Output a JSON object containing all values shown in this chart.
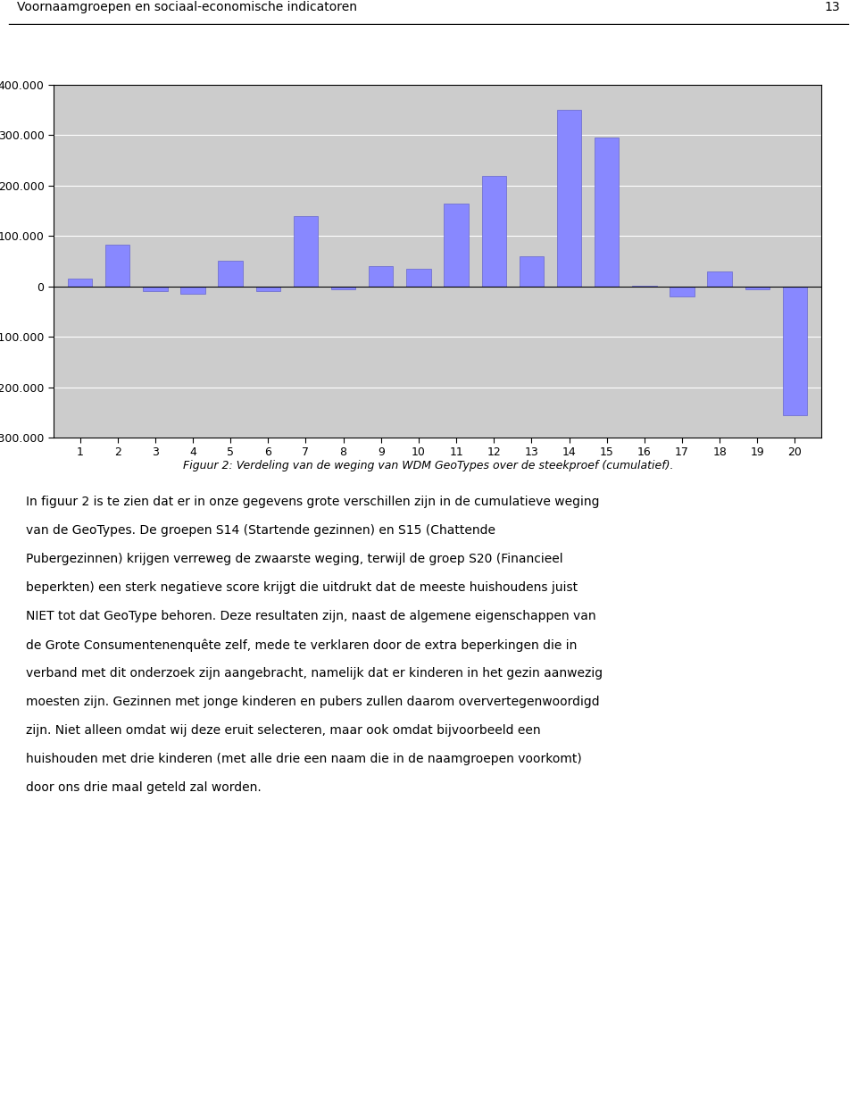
{
  "values": [
    15000,
    82000,
    -10000,
    -15000,
    50000,
    -10000,
    140000,
    -5000,
    40000,
    35000,
    165000,
    220000,
    60000,
    350000,
    295000,
    2000,
    -20000,
    30000,
    -5000,
    -255000
  ],
  "categories": [
    "1",
    "2",
    "3",
    "4",
    "5",
    "6",
    "7",
    "8",
    "9",
    "10",
    "11",
    "12",
    "13",
    "14",
    "15",
    "16",
    "17",
    "18",
    "19",
    "20"
  ],
  "bar_color": "#8888FF",
  "bar_edge_color": "#6666CC",
  "plot_bg_color": "#CCCCCC",
  "fig_bg_color": "#FFFFFF",
  "ylim_min": -300000,
  "ylim_max": 400000,
  "ytick_step": 100000,
  "header_text": "Voornaamgroepen en sociaal-economische indicatoren",
  "header_page": "13",
  "caption": "Figuur 2: Verdeling van de weging van WDM GeoTypes over de steekproef (cumulatief).",
  "body_lines": [
    "In figuur 2 is te zien dat er in onze gegevens grote verschillen zijn in de cumulatieve weging",
    "van de GeoTypes. De groepen S14 (Startende gezinnen) en S15 (Chattende",
    "Pubergezinnen) krijgen verreweg de zwaarste weging, terwijl de groep S20 (Financieel",
    "beperkten) een sterk negatieve score krijgt die uitdrukt dat de meeste huishoudens juist",
    "NIET tot dat GeoType behoren. Deze resultaten zijn, naast de algemene eigenschappen van",
    "de Grote Consumentenenquête zelf, mede te verklaren door de extra beperkingen die in",
    "verband met dit onderzoek zijn aangebracht, namelijk dat er kinderen in het gezin aanwezig",
    "moesten zijn. Gezinnen met jonge kinderen en pubers zullen daarom oververtegenwoordigd",
    "zijn. Niet alleen omdat wij deze eruit selecteren, maar ook omdat bijvoorbeeld een",
    "huishouden met drie kinderen (met alle drie een naam die in de naamgroepen voorkomt)",
    "door ons drie maal geteld zal worden."
  ]
}
